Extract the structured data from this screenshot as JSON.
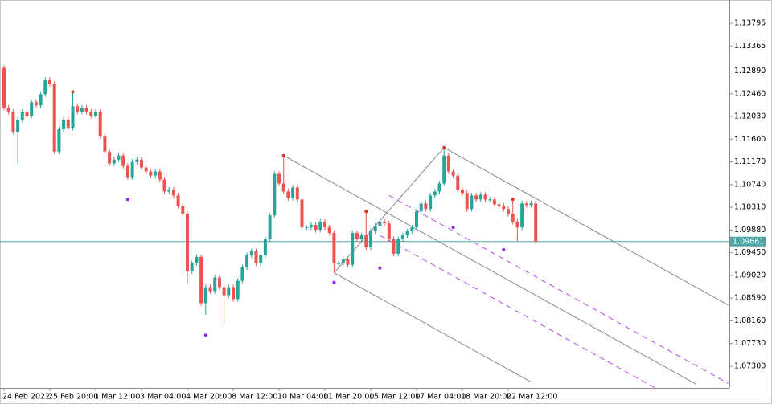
{
  "chart_data": {
    "type": "candlestick",
    "categories": [
      "24 Feb 2022",
      null,
      null,
      null,
      null,
      null,
      null,
      null,
      null,
      null,
      "25 Feb 20:00",
      null,
      null,
      null,
      null,
      null,
      null,
      null,
      null,
      null,
      "1 Mar 12:00",
      null,
      null,
      null,
      null,
      null,
      null,
      null,
      null,
      null,
      "3 Mar 04:00",
      null,
      null,
      null,
      null,
      null,
      null,
      null,
      null,
      null,
      "4 Mar 20:00",
      null,
      null,
      null,
      null,
      null,
      null,
      null,
      null,
      null,
      "8 Mar 12:00",
      null,
      null,
      null,
      null,
      null,
      null,
      null,
      null,
      null,
      "10 Mar 04:00",
      null,
      null,
      null,
      null,
      null,
      null,
      null,
      null,
      null,
      "11 Mar 20:00",
      null,
      null,
      null,
      null,
      null,
      null,
      null,
      null,
      null,
      "15 Mar 12:00",
      null,
      null,
      null,
      null,
      null,
      null,
      null,
      null,
      null,
      "17 Mar 04:00",
      null,
      null,
      null,
      null,
      null,
      null,
      null,
      null,
      null,
      "18 Mar 20:00",
      null,
      null,
      null,
      null,
      null,
      null,
      null,
      null,
      null,
      "22 Mar 12:00",
      null,
      null,
      null,
      null,
      null,
      null
    ],
    "open": [
      1.1295,
      1.12195,
      1.12119,
      1.11742,
      1.11968,
      1.12119,
      1.12044,
      1.123,
      1.1224,
      1.12451,
      1.12723,
      1.12648,
      1.11364,
      1.11787,
      1.11968,
      1.11817,
      1.12225,
      1.12119,
      1.12195,
      1.12119,
      1.12044,
      1.12119,
      1.11666,
      1.11364,
      1.11138,
      1.11213,
      1.11289,
      1.11092,
      1.10881,
      1.11168,
      1.11213,
      1.11062,
      1.10987,
      1.10911,
      1.10987,
      1.10836,
      1.10609,
      1.10639,
      1.10534,
      1.10337,
      1.10186,
      1.09099,
      1.0925,
      1.09371,
      1.08495,
      1.08797,
      1.08722,
      1.08978,
      1.08797,
      1.08646,
      1.08797,
      1.08571,
      1.08918,
      1.09175,
      1.09401,
      1.09477,
      1.0925,
      1.09401,
      1.09703,
      1.10156,
      1.10941,
      1.1076,
      1.10609,
      1.10488,
      1.10685,
      1.10458,
      1.0993,
      1.0993,
      1.09975,
      1.09884,
      1.10035,
      1.0993,
      1.09824,
      1.0925,
      1.0925,
      1.09326,
      1.0922,
      1.09824,
      1.09703,
      1.09779,
      1.09552,
      1.09854,
      1.0996,
      1.10035,
      1.10005,
      1.09703,
      1.09431,
      1.09703,
      1.09779,
      1.09854,
      1.0993,
      1.10232,
      1.10383,
      1.10277,
      1.10534,
      1.10609,
      1.1076,
      1.11289,
      1.10987,
      1.10911,
      1.10639,
      1.10579,
      1.10277,
      1.10534,
      1.10458,
      1.10549,
      1.10458,
      1.10458,
      1.10367,
      1.10337,
      1.10277,
      1.10186,
      1.10035,
      1.0993,
      1.10383,
      1.10352,
      1.10383
    ],
    "high": [
      1.13,
      1.12245,
      1.12169,
      1.12018,
      1.12169,
      1.12169,
      1.1235,
      1.1235,
      1.12501,
      1.12773,
      1.12773,
      1.12698,
      1.11837,
      1.12018,
      1.12018,
      1.12496,
      1.12275,
      1.12245,
      1.12245,
      1.12169,
      1.12169,
      1.12169,
      1.11716,
      1.11414,
      1.11263,
      1.11339,
      1.11339,
      1.11142,
      1.11218,
      1.11263,
      1.11263,
      1.11112,
      1.11037,
      1.11037,
      1.11037,
      1.10886,
      1.10689,
      1.10689,
      1.10584,
      1.10387,
      1.10236,
      1.093,
      1.09421,
      1.09421,
      1.08847,
      1.08847,
      1.09028,
      1.09028,
      1.08847,
      1.08847,
      1.08847,
      1.08968,
      1.09225,
      1.09451,
      1.09527,
      1.09527,
      1.09451,
      1.09753,
      1.10206,
      1.10991,
      1.10991,
      1.11289,
      1.10659,
      1.10735,
      1.10735,
      1.10508,
      1.0998,
      1.10025,
      1.10025,
      1.10085,
      1.10085,
      1.0998,
      1.09874,
      1.093,
      1.09376,
      1.09376,
      1.09874,
      1.09874,
      1.09829,
      1.10232,
      1.09904,
      1.1001,
      1.10085,
      1.10085,
      1.10055,
      1.09753,
      1.09753,
      1.09829,
      1.09904,
      1.0998,
      1.10282,
      1.10433,
      1.10433,
      1.10584,
      1.10659,
      1.1081,
      1.1144,
      1.11339,
      1.11037,
      1.10961,
      1.10689,
      1.10629,
      1.10584,
      1.10584,
      1.10599,
      1.10599,
      1.10508,
      1.10508,
      1.10417,
      1.10387,
      1.10327,
      1.10459,
      1.10085,
      1.10433,
      1.10433,
      1.10433,
      1.10433
    ],
    "low": [
      1.12145,
      1.12069,
      1.11692,
      1.11138,
      1.11918,
      1.11994,
      1.11994,
      1.1219,
      1.1219,
      1.12401,
      1.12598,
      1.11314,
      1.11314,
      1.11737,
      1.11767,
      1.11767,
      1.12069,
      1.12069,
      1.12069,
      1.11994,
      1.11994,
      1.11616,
      1.11314,
      1.11088,
      1.11088,
      1.11163,
      1.11042,
      1.10831,
      1.10831,
      1.11118,
      1.11012,
      1.10937,
      1.10861,
      1.10861,
      1.10786,
      1.10559,
      1.10559,
      1.10484,
      1.10287,
      1.10136,
      1.08873,
      1.09049,
      1.092,
      1.08445,
      1.08269,
      1.08672,
      1.08672,
      1.08747,
      1.08118,
      1.08596,
      1.08521,
      1.08521,
      1.08868,
      1.09125,
      1.09351,
      1.092,
      1.092,
      1.09351,
      1.09653,
      1.10106,
      1.1071,
      1.10559,
      1.10438,
      1.10438,
      1.10408,
      1.0988,
      1.0988,
      1.0988,
      1.09834,
      1.09834,
      1.0988,
      1.09774,
      1.09069,
      1.092,
      1.092,
      1.0917,
      1.0917,
      1.09653,
      1.09653,
      1.09502,
      1.09502,
      1.09804,
      1.0991,
      1.09955,
      1.09653,
      1.09381,
      1.09381,
      1.09653,
      1.09729,
      1.09804,
      1.0988,
      1.10182,
      1.10227,
      1.10227,
      1.10484,
      1.10559,
      1.1071,
      1.10937,
      1.10861,
      1.10589,
      1.10529,
      1.10227,
      1.10227,
      1.10408,
      1.10408,
      1.10408,
      1.10408,
      1.10317,
      1.10287,
      1.10227,
      1.10136,
      1.09985,
      1.09673,
      1.0988,
      1.10302,
      1.10302,
      1.09611
    ],
    "close": [
      1.12195,
      1.12119,
      1.11742,
      1.11968,
      1.12119,
      1.12044,
      1.123,
      1.1224,
      1.12451,
      1.12723,
      1.12648,
      1.11364,
      1.11787,
      1.11968,
      1.11817,
      1.12225,
      1.12119,
      1.12195,
      1.12119,
      1.12044,
      1.12119,
      1.11666,
      1.11364,
      1.11138,
      1.11213,
      1.11289,
      1.11092,
      1.10881,
      1.11168,
      1.11213,
      1.11062,
      1.10987,
      1.10911,
      1.10987,
      1.10836,
      1.10609,
      1.10639,
      1.10534,
      1.10337,
      1.10186,
      1.09099,
      1.0925,
      1.09371,
      1.08495,
      1.08797,
      1.08722,
      1.08978,
      1.08797,
      1.08646,
      1.08797,
      1.08571,
      1.08918,
      1.09175,
      1.09401,
      1.09477,
      1.0925,
      1.09401,
      1.09703,
      1.10156,
      1.10941,
      1.1076,
      1.10609,
      1.10488,
      1.10685,
      1.10458,
      1.0993,
      1.0993,
      1.09975,
      1.09884,
      1.10035,
      1.0993,
      1.09824,
      1.0925,
      1.0925,
      1.09326,
      1.0922,
      1.09824,
      1.09703,
      1.09779,
      1.09552,
      1.09854,
      1.0996,
      1.10035,
      1.10005,
      1.09703,
      1.09431,
      1.09703,
      1.09779,
      1.09854,
      1.0993,
      1.10232,
      1.10383,
      1.10277,
      1.10534,
      1.10609,
      1.1076,
      1.11289,
      1.10987,
      1.10911,
      1.10639,
      1.10579,
      1.10277,
      1.10534,
      1.10458,
      1.10549,
      1.10458,
      1.10458,
      1.10367,
      1.10337,
      1.10277,
      1.10186,
      1.10035,
      1.0993,
      1.10383,
      1.10352,
      1.10383,
      1.09661
    ],
    "up_color": "#26a69a",
    "down_color": "#ef5350",
    "ylim": [
      1.06889,
      1.14236
    ],
    "yticks": [
      1.13795,
      1.13365,
      {
        "value": 1.1289,
        "label": "1.12890"
      },
      {
        "value": 1.1246,
        "label": "1.12460"
      },
      {
        "value": 1.1203,
        "label": "1.12030"
      },
      {
        "value": 1.116,
        "label": "1.11600"
      },
      {
        "value": 1.1117,
        "label": "1.11170"
      },
      {
        "value": 1.1074,
        "label": "1.10740"
      },
      {
        "value": 1.1031,
        "label": "1.10310"
      },
      {
        "value": 1.0988,
        "label": "1.09880"
      },
      {
        "value": 1.0945,
        "label": "1.09450"
      },
      {
        "value": 1.0902,
        "label": "1.09020"
      },
      {
        "value": 1.0859,
        "label": "1.08590"
      },
      {
        "value": 1.0816,
        "label": "1.08160"
      },
      {
        "value": 1.0773,
        "label": "1.07730"
      },
      {
        "value": 1.073,
        "label": "1.07300"
      }
    ],
    "last_price": 1.09661,
    "last_price_color": "#4da6a6",
    "fractals_up": [
      {
        "x": 15,
        "y": 1.12496
      },
      {
        "x": 61,
        "y": 1.11289
      },
      {
        "x": 79,
        "y": 1.10232
      },
      {
        "x": 96,
        "y": 1.1144
      },
      {
        "x": 111,
        "y": 1.10459
      }
    ],
    "fractals_up_color": "#e0302c",
    "fractals_down": [
      {
        "x": 27,
        "y": 1.10458
      },
      {
        "x": 44,
        "y": 1.07891
      },
      {
        "x": 72,
        "y": 1.08888
      },
      {
        "x": 82,
        "y": 1.09159
      },
      {
        "x": 98,
        "y": 1.0993
      },
      {
        "x": 109,
        "y": 1.09507
      }
    ],
    "fractals_down_color": "#8a2be2",
    "lines": [
      {
        "x": [
          61,
          151
        ],
        "y": [
          1.11289,
          1.0696
        ],
        "color": "#888888",
        "dash": false
      },
      {
        "x": [
          96,
          158
        ],
        "y": [
          1.1144,
          1.08458
        ],
        "color": "#888888",
        "dash": false
      },
      {
        "x": [
          72,
          115
        ],
        "y": [
          1.09069,
          1.07001
        ],
        "color": "#888888",
        "dash": false
      },
      {
        "x": [
          72,
          96
        ],
        "y": [
          1.09069,
          1.1144
        ],
        "color": "#888888",
        "dash": false
      },
      {
        "x": [
          84,
          158
        ],
        "y": [
          1.10534,
          1.06975
        ],
        "color": "#b44be6",
        "dash": true
      },
      {
        "x": [
          82,
          142
        ],
        "y": [
          1.09779,
          1.06893
        ],
        "color": "#b44be6",
        "dash": true
      }
    ]
  }
}
